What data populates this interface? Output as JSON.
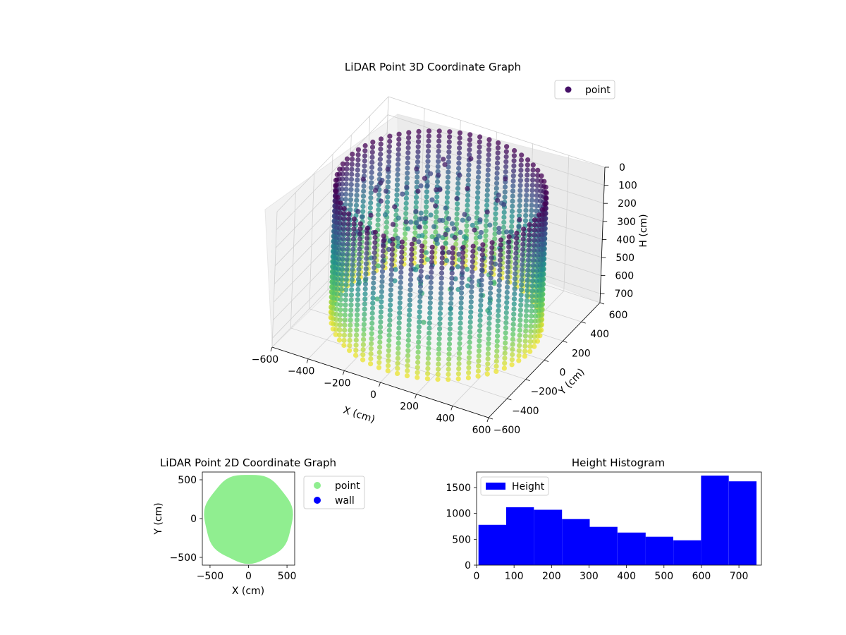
{
  "chart_data": [
    {
      "type": "scatter3d",
      "title": "LiDAR Point 3D Coordinate Graph",
      "xlabel": "X (cm)",
      "ylabel": "Y (cm)",
      "zlabel": "H (cm)",
      "xlim": [
        -600,
        600
      ],
      "ylim": [
        -600,
        600
      ],
      "zlim": [
        0,
        750
      ],
      "z_inverted": true,
      "x_ticks": [
        "−600",
        "−400",
        "−200",
        "0",
        "200",
        "400",
        "600"
      ],
      "y_ticks": [
        "−600",
        "−400",
        "−200",
        "0",
        "200",
        "400",
        "600"
      ],
      "z_ticks": [
        "0",
        "100",
        "200",
        "300",
        "400",
        "500",
        "600",
        "700"
      ],
      "legend": {
        "placement": "top-right",
        "entries": [
          "point"
        ]
      },
      "colormap": "viridis",
      "series": [
        {
          "name": "point",
          "shape": "cylindrical wall",
          "radius_cm": 520,
          "height_range": [
            0,
            740
          ],
          "column_count": 64,
          "marker_color": "#440f66"
        }
      ],
      "grid": true
    },
    {
      "type": "scatter",
      "title": "LiDAR Point 2D Coordinate Graph",
      "xlabel": "X (cm)",
      "ylabel": "Y (cm)",
      "xlim": [
        -600,
        600
      ],
      "ylim": [
        -600,
        600
      ],
      "x_ticks": [
        "−500",
        "0",
        "500"
      ],
      "y_ticks": [
        "500",
        "0",
        "−500"
      ],
      "legend": {
        "placement": "outside-right",
        "entries": [
          "point",
          "wall"
        ]
      },
      "series": [
        {
          "name": "point",
          "color": "#90ee90",
          "shape": "filled disc",
          "radius_cm": 560
        },
        {
          "name": "wall",
          "color": "#0000ff",
          "points": []
        }
      ]
    },
    {
      "type": "bar",
      "title": "Height Histogram",
      "xlabel": "",
      "ylabel": "",
      "xlim": [
        0,
        760
      ],
      "ylim": [
        0,
        1800
      ],
      "x_ticks": [
        "0",
        "100",
        "200",
        "300",
        "400",
        "500",
        "600",
        "700"
      ],
      "y_ticks": [
        "0",
        "500",
        "1000",
        "1500"
      ],
      "legend": {
        "placement": "top-left",
        "entries": [
          "Height"
        ]
      },
      "bin_edges": [
        5,
        79,
        153,
        228,
        302,
        376,
        451,
        525,
        599,
        673,
        747
      ],
      "series": [
        {
          "name": "Height",
          "color": "#0000ff",
          "values": [
            780,
            1120,
            1070,
            890,
            740,
            630,
            550,
            480,
            1730,
            1620
          ]
        }
      ]
    }
  ]
}
